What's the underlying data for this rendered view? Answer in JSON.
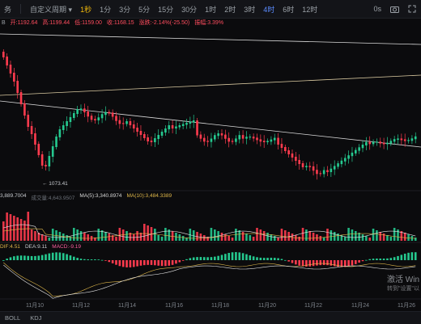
{
  "toolbar": {
    "lead": "务",
    "items": [
      {
        "label": "自定义周期",
        "active": false,
        "chevron": true
      },
      {
        "label": "1秒",
        "active": true
      },
      {
        "label": "1分",
        "active": false
      },
      {
        "label": "3分",
        "active": false
      },
      {
        "label": "5分",
        "active": false
      },
      {
        "label": "15分",
        "active": false
      },
      {
        "label": "30分",
        "active": false
      },
      {
        "label": "1时",
        "active": false
      },
      {
        "label": "2时",
        "active": false
      },
      {
        "label": "3时",
        "active": false
      },
      {
        "label": "4时",
        "active": false,
        "highlight": true
      },
      {
        "label": "6时",
        "active": false
      },
      {
        "label": "12时",
        "active": false
      },
      {
        "label": "0s",
        "active": false
      }
    ],
    "icons": [
      "camera-icon",
      "expand-icon"
    ]
  },
  "ohlc": {
    "lead": "B",
    "open": "开:1192.64",
    "high": "高:1199.44",
    "low": "低:1159.00",
    "close": "收:1168.15",
    "change": "涨跌:-2.14%(-25.50)",
    "amplitude": "振幅:3.39%"
  },
  "annotations": {
    "low_label": "← 1073.41"
  },
  "volume_bar": {
    "vol": "3,889.7004",
    "mavol": "成交量:4,643.9507",
    "ma5": "MA(5):3,340.8974",
    "ma10": "MA(10):3,484.3389"
  },
  "macd_bar": {
    "dif": "DIF:4.51",
    "dea": "DEA:9.11",
    "macd": "MACD:-9.19"
  },
  "xaxis": [
    "11月10",
    "11月12",
    "11月14",
    "11月16",
    "11月18",
    "11月20",
    "11月22",
    "11月24",
    "11月26"
  ],
  "bottom_tabs": [
    "BOLL",
    "KDJ"
  ],
  "watermark": {
    "line1": "激活 Win",
    "line2": "转到\"设置\"以"
  },
  "colors": {
    "up": "#25c98f",
    "down": "#ff3b4e",
    "accent": "#f0b90b"
  }
}
